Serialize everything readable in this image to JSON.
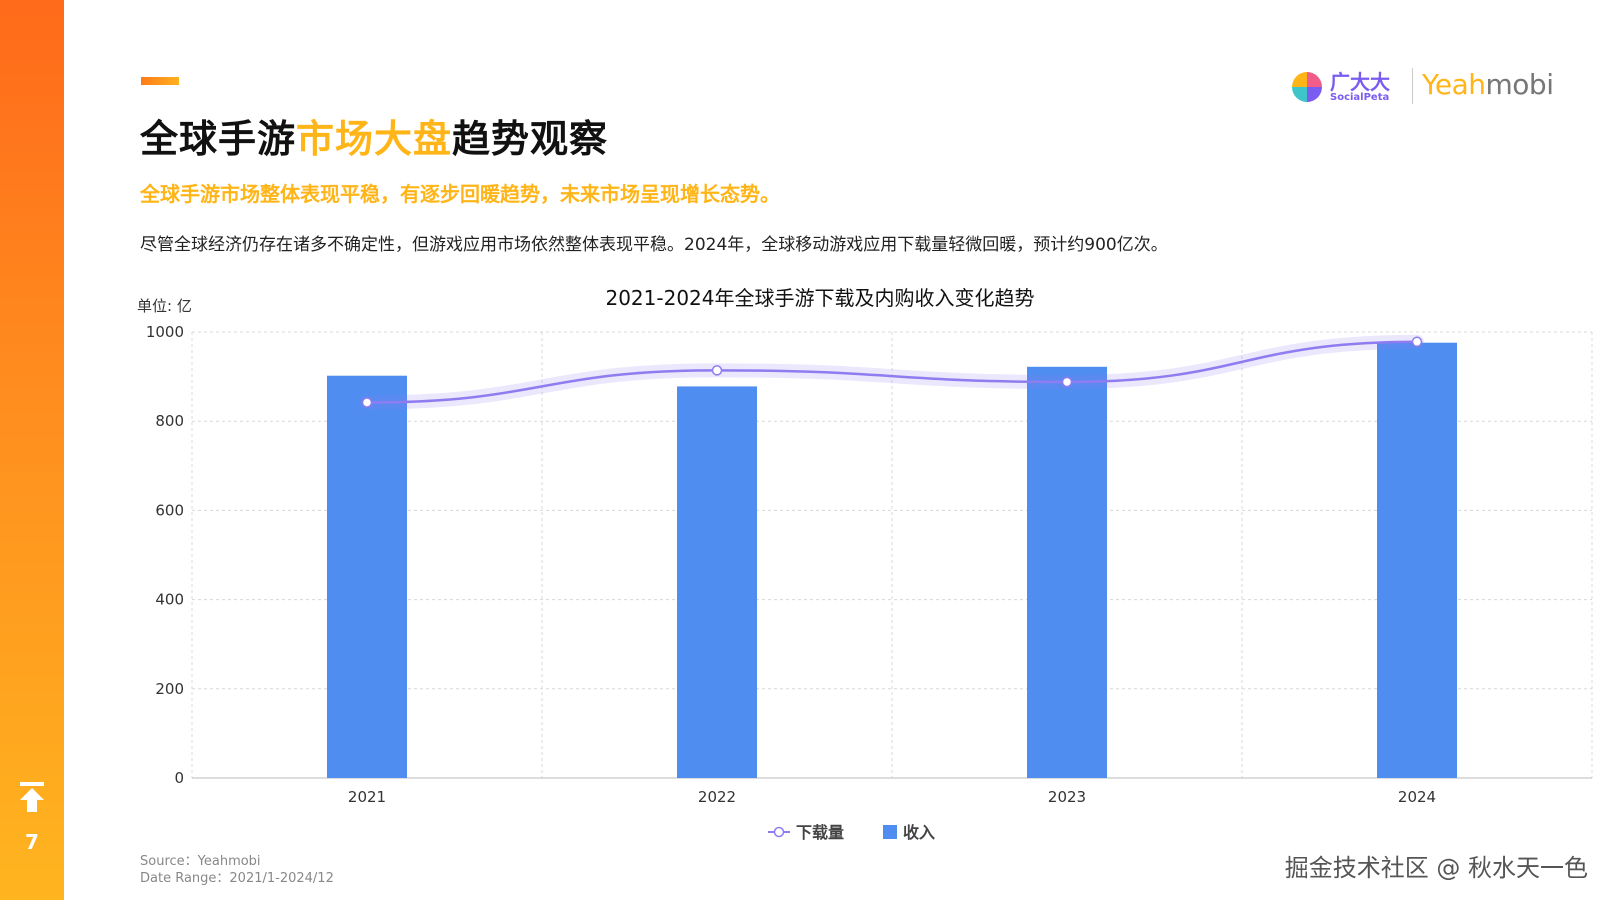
{
  "page": {
    "number": "7",
    "nav_icon": "arrow-up-to-top-icon"
  },
  "header": {
    "title_part1": "全球手游",
    "title_highlight": "市场大盘",
    "title_part2": "趋势观察",
    "subtitle": "全球手游市场整体表现平稳，有逐步回暖趋势，未来市场呈现增长态势。",
    "description": "尽管全球经济仍存在诸多不确定性，但游戏应用市场依然整体表现平稳。2024年，全球移动游戏应用下载量轻微回暖，预计约900亿次。"
  },
  "logos": {
    "brand_cn": "广大大",
    "brand_en": "SocialPeta",
    "partner_part1": "Yeah",
    "partner_part2": "mobi"
  },
  "colors": {
    "accent_orange": "#ffb518",
    "bar_blue": "#4f8ef0",
    "line_purple": "#8f7cf0"
  },
  "chart_data": {
    "type": "bar",
    "title": "2021-2024年全球手游下载及内购收入变化趋势",
    "unit_label": "单位: 亿",
    "categories": [
      "2021",
      "2022",
      "2023",
      "2024"
    ],
    "series": [
      {
        "name": "下载量",
        "type": "line",
        "values": [
          842,
          914,
          888,
          978
        ]
      },
      {
        "name": "收入",
        "type": "bar",
        "values": [
          902,
          878,
          922,
          976
        ]
      }
    ],
    "ylim": [
      0,
      1000
    ],
    "yticks": [
      0,
      200,
      400,
      600,
      800,
      1000
    ],
    "grid": true,
    "legend_position": "bottom-center"
  },
  "footer": {
    "source": "Source：Yeahmobi",
    "date_range": "Date Range：2021/1-2024/12",
    "credit": "掘金技术社区 @ 秋水天一色"
  }
}
